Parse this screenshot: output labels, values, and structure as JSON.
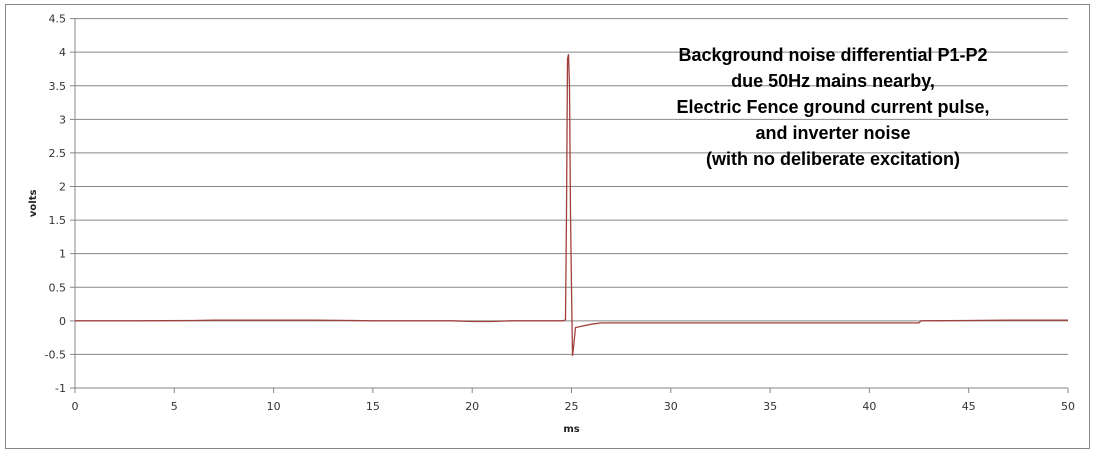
{
  "chart_data": {
    "type": "line",
    "title_lines": [
      "Background noise differential P1-P2",
      "due 50Hz mains nearby,",
      "Electric Fence ground current pulse,",
      "and inverter noise",
      "(with no deliberate excitation)"
    ],
    "xlabel": "ms",
    "ylabel": "volts",
    "xlim": [
      0,
      50
    ],
    "ylim": [
      -1,
      4.5
    ],
    "xticks": [
      0,
      5,
      10,
      15,
      20,
      25,
      30,
      35,
      40,
      45,
      50
    ],
    "yticks": [
      -1,
      -0.5,
      0,
      0.5,
      1,
      1.5,
      2,
      2.5,
      3,
      3.5,
      4,
      4.5
    ],
    "grid": "horizontal",
    "line_color": "#a0403c",
    "series": [
      {
        "x": [
          0,
          3,
          6,
          7,
          9,
          12,
          14,
          15,
          17,
          19,
          20,
          21,
          22,
          23,
          24,
          24.6,
          24.7,
          24.75,
          24.8,
          24.85,
          24.9,
          24.95,
          25.0,
          25.05,
          25.1,
          25.2,
          25.5,
          26,
          26.5,
          28,
          30,
          35,
          40,
          42.5,
          42.6,
          45,
          47,
          50
        ],
        "y": [
          0,
          0,
          0.005,
          0.01,
          0.01,
          0.01,
          0.005,
          0,
          0,
          0,
          -0.01,
          -0.01,
          0,
          0,
          0,
          0,
          0.02,
          1.6,
          3.9,
          3.97,
          3.5,
          1.6,
          0.5,
          -0.52,
          -0.4,
          -0.1,
          -0.08,
          -0.05,
          -0.03,
          -0.03,
          -0.03,
          -0.03,
          -0.03,
          -0.03,
          0,
          0.005,
          0.01,
          0.01
        ]
      }
    ]
  }
}
